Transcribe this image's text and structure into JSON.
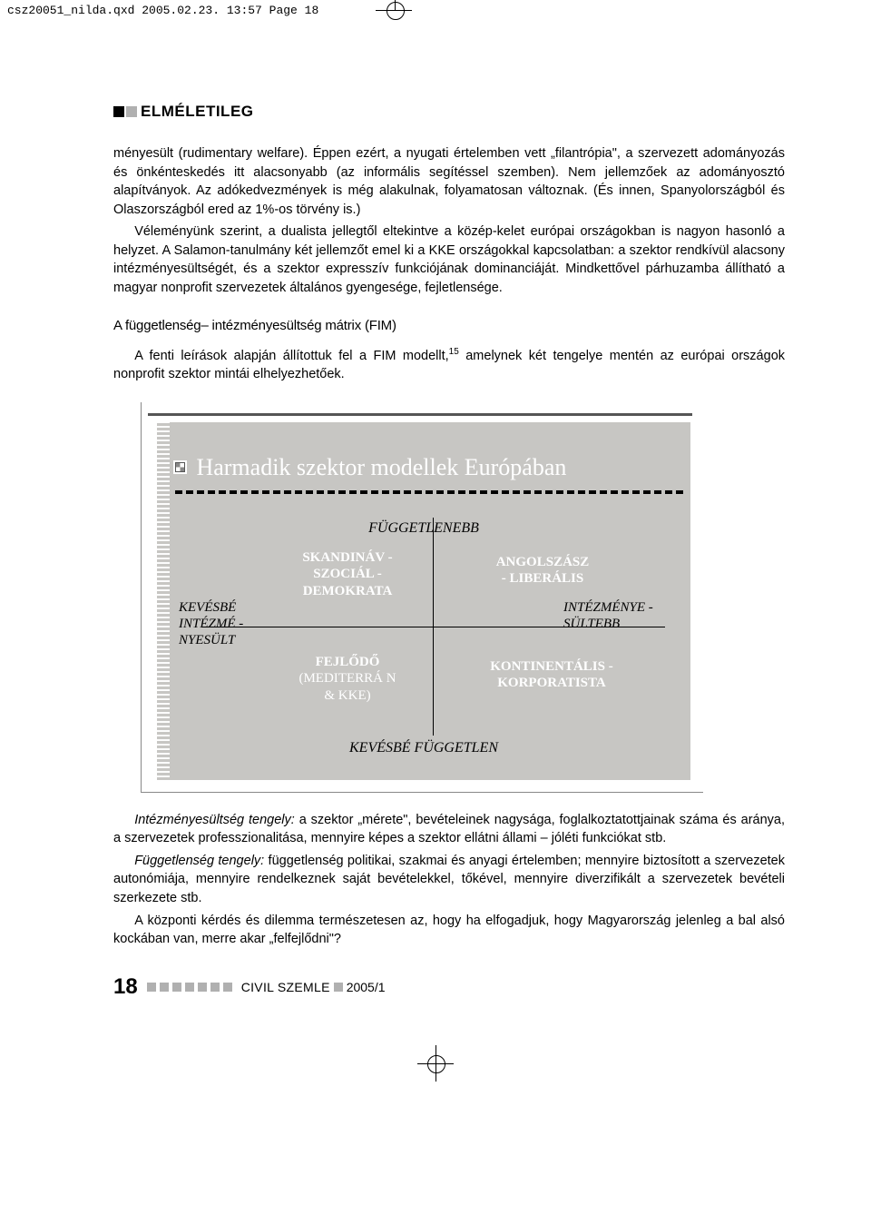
{
  "crop_info": "csz20051_nilda.qxd  2005.02.23.  13:57  Page 18",
  "section_label": "ELMÉLETILEG",
  "para1": "ményesült (rudimentary welfare). Éppen ezért, a nyugati értelemben vett „filantrópia\", a szervezett adományozás és önkénteskedés itt alacsonyabb (az informális segítéssel szemben). Nem jellemzőek az adományosztó alapítványok. Az adókedvezmények is még alakulnak, folyamatosan változnak. (És innen, Spanyolországból és Olaszországból ered az 1%-os törvény is.)",
  "para2": "Véleményünk szerint, a dualista jellegtől eltekintve a közép-kelet európai országokban is nagyon hasonló a helyzet. A Salamon-tanulmány két jellemzőt emel ki a KKE országokkal kapcsolatban: a szektor rendkívül alacsony intézményesültségét, és a szektor expresszív funkciójának dominanciáját. Mindkettővel párhuzamba állítható a magyar nonprofit szervezetek általános gyengesége, fejletlensége.",
  "subhead1": "A függetlenség– intézményesültség mátrix (FIM)",
  "para3a": "A fenti leírások alapján állítottuk fel a FIM modellt,",
  "fn15": "15",
  "para3b": " amelynek két tengelye mentén az európai országok nonprofit szektor mintái elhelyezhetőek.",
  "diagram": {
    "title": "Harmadik szektor modellek Európában",
    "axis_top": "FÜGGETLENEBB",
    "axis_bottom": "KEVÉSBÉ FÜGGETLEN",
    "axis_left_l1": "KEVÉSBÉ",
    "axis_left_l2": "INTÉZMÉ -",
    "axis_left_l3": "NYESÜLT",
    "axis_right_l1": "INTÉZMÉNYE -",
    "axis_right_l2": "SÜLTEBB",
    "q1_l1": "SKANDINÁV  -",
    "q1_l2": "SZOCIÁL -",
    "q1_l3": "DEMOKRATA",
    "q2_l1": "ANGOLSZÁSZ",
    "q2_l2": "- LIBERÁLIS",
    "q3_l1": "FEJLŐDŐ",
    "q3_l2": "(MEDITERRÁ N",
    "q3_l3": "& KKE)",
    "q4_l1": "KONTINENTÁLIS  -",
    "q4_l2": "KORPORATISTA",
    "bg_color": "#c7c6c3",
    "text_white": "#ffffff"
  },
  "para4_label": "Intézményesültség tengely:",
  "para4": " a szektor „mérete\", bevételeinek nagysága, foglalkoztatottjainak száma és aránya, a szervezetek professzionalitása, mennyire képes a szektor ellátni állami – jóléti funkciókat stb.",
  "para5_label": "Függetlenség tengely:",
  "para5": " függetlenség politikai, szakmai és anyagi értelemben; mennyire biztosított a szervezetek autonómiája, mennyire rendelkeznek saját bevételekkel, tőkével, mennyire diverzifikált a szervezetek bevételi szerkezete stb.",
  "para6": "A központi kérdés és dilemma természetesen az, hogy ha elfogadjuk, hogy Magyarország jelenleg a bal alsó kockában van, merre akar „felfejlődni\"?",
  "footer": {
    "page": "18",
    "journal": "CIVIL SZEMLE",
    "issue": "2005/1"
  }
}
